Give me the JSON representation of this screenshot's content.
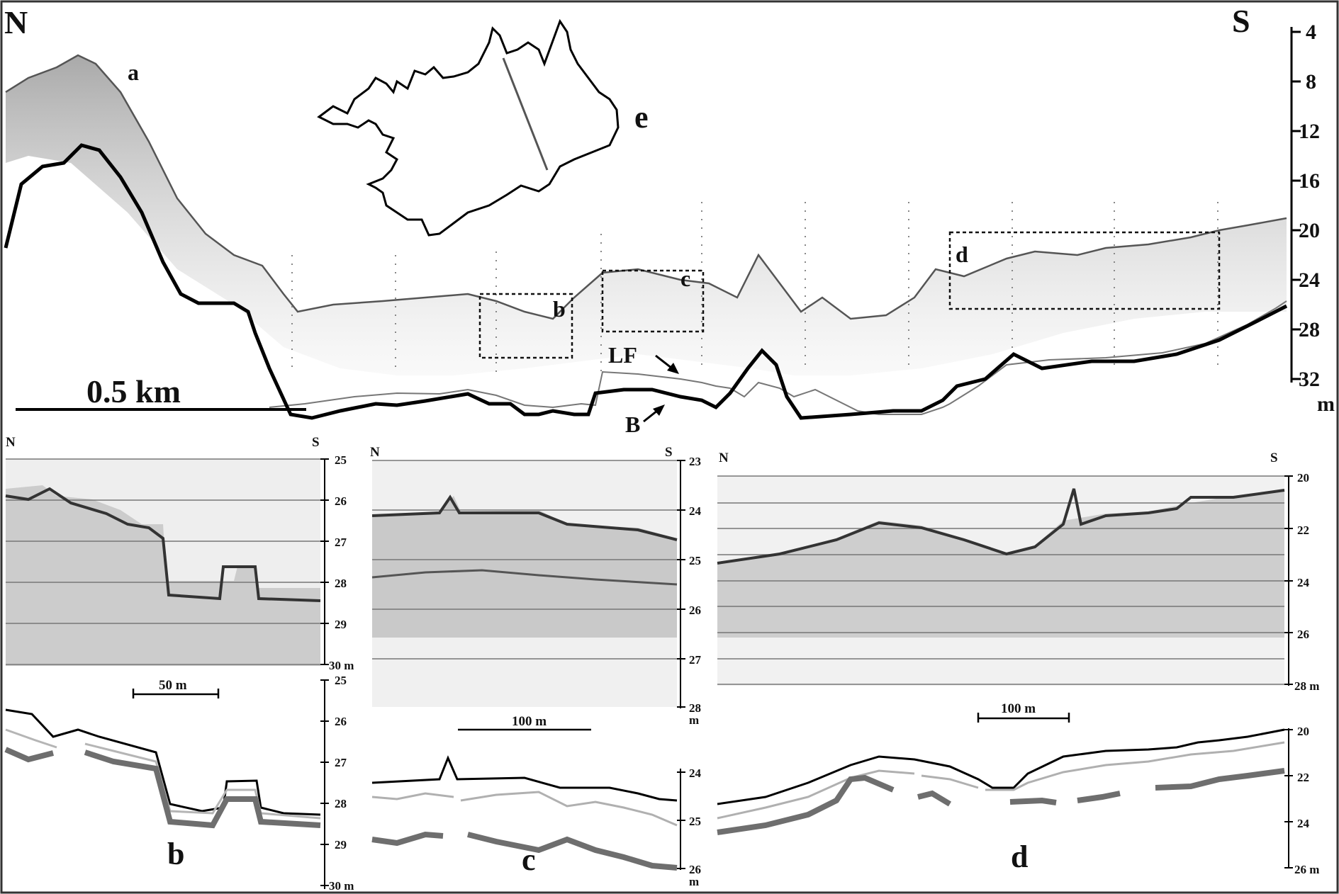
{
  "main_profile": {
    "north": "N",
    "south": "S",
    "depth_ticks": [
      "4",
      "8",
      "12",
      "16",
      "20",
      "24",
      "28",
      "32"
    ],
    "depth_unit": "m",
    "scale_bar": "0.5 km",
    "marker_a": "a",
    "box_b": "b",
    "box_c": "c",
    "box_d": "d",
    "map_label": "e",
    "label_lf": "LF",
    "label_b": "B"
  },
  "panel_b": {
    "north": "N",
    "south": "S",
    "echo_ticks": [
      "25",
      "26",
      "27",
      "28",
      "29",
      "30 m"
    ],
    "interp_ticks": [
      "25",
      "26",
      "27",
      "28",
      "29",
      "30 m"
    ],
    "scale_bar": "50 m",
    "label": "b"
  },
  "panel_c": {
    "north": "N",
    "south": "S",
    "echo_ticks": [
      "23",
      "24",
      "25",
      "26",
      "27",
      "28"
    ],
    "echo_unit": "m",
    "interp_ticks": [
      "24",
      "25",
      "26"
    ],
    "interp_unit": "m",
    "scale_bar": "100 m",
    "label": "c"
  },
  "panel_d": {
    "north": "N",
    "south": "S",
    "echo_ticks": [
      "20",
      "22",
      "24",
      "26",
      "28 m"
    ],
    "interp_ticks": [
      "20",
      "22",
      "24",
      "26 m"
    ],
    "scale_bar": "100 m",
    "label": "d"
  }
}
